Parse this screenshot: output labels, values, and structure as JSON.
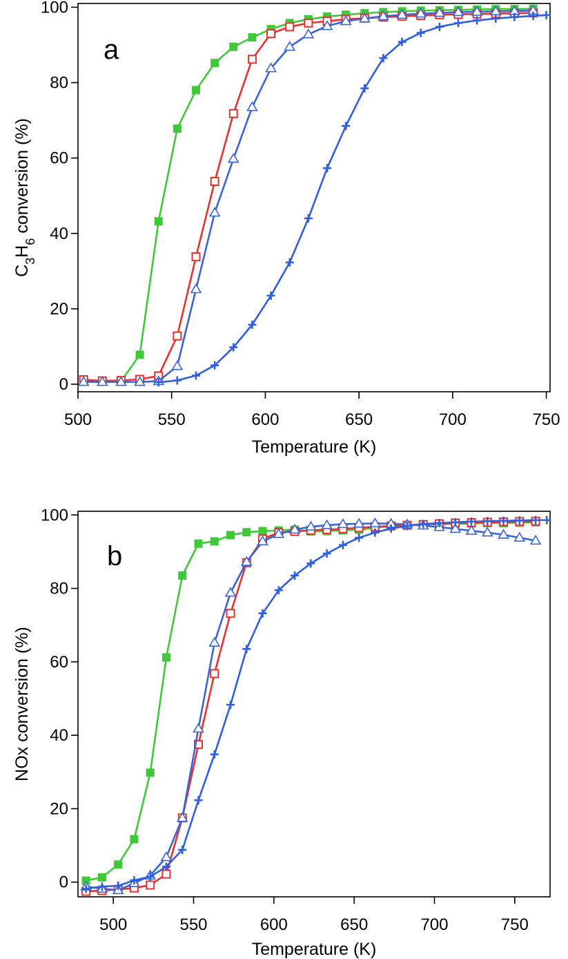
{
  "chart_data": [
    {
      "type": "line",
      "panel_label": "a",
      "xlabel": "Temperature (K)",
      "ylabel": {
        "main": "C",
        "sub1": "3",
        "mid": "H",
        "sub2": "6",
        "tail": " conversion (%)"
      },
      "xlim": [
        500,
        752
      ],
      "ylim": [
        -2,
        101
      ],
      "xticks": [
        500,
        550,
        600,
        650,
        700,
        750
      ],
      "yticks": [
        0,
        20,
        40,
        60,
        80,
        100
      ],
      "grid": false,
      "legend": "none",
      "series": [
        {
          "color": "#3ec83a",
          "marker": "filled-square",
          "x": [
            503,
            513,
            523,
            533,
            543,
            553,
            563,
            573,
            583,
            593,
            603,
            613,
            623,
            633,
            643,
            653,
            663,
            673,
            683,
            693,
            703,
            713,
            723,
            733,
            743
          ],
          "y": [
            0.8,
            0.8,
            0.8,
            7.8,
            43.2,
            67.8,
            78.0,
            85.2,
            89.5,
            92.0,
            94.2,
            95.8,
            96.8,
            97.5,
            98.0,
            98.4,
            98.7,
            98.9,
            99.1,
            99.2,
            99.3,
            99.4,
            99.5,
            99.5,
            99.6
          ]
        },
        {
          "color": "#e8312f",
          "marker": "open-square",
          "x": [
            503,
            513,
            523,
            533,
            543,
            553,
            563,
            573,
            583,
            593,
            603,
            613,
            623,
            633,
            643,
            653,
            663,
            673,
            683,
            693,
            703,
            713,
            723,
            733,
            743
          ],
          "y": [
            1.2,
            0.9,
            1.0,
            1.3,
            2.2,
            12.8,
            33.8,
            53.8,
            71.8,
            86.2,
            93.0,
            94.8,
            95.8,
            96.3,
            96.8,
            97.1,
            97.4,
            97.6,
            97.8,
            98.0,
            98.1,
            98.2,
            98.3,
            98.4,
            98.5
          ]
        },
        {
          "color": "#3b63d8",
          "marker": "open-triangle",
          "x": [
            503,
            513,
            523,
            533,
            543,
            553,
            563,
            573,
            583,
            593,
            603,
            613,
            623,
            633,
            643,
            653,
            663,
            673,
            683,
            693,
            703,
            713,
            723,
            733,
            743
          ],
          "y": [
            0.6,
            0.6,
            0.6,
            0.6,
            0.8,
            4.8,
            25.2,
            45.5,
            59.8,
            73.5,
            83.8,
            89.5,
            92.8,
            95.0,
            96.3,
            97.0,
            97.6,
            98.0,
            98.3,
            98.5,
            98.7,
            98.8,
            98.9,
            99.0,
            99.1
          ]
        },
        {
          "color": "#2f5fe0",
          "marker": "plus",
          "x": [
            543,
            553,
            563,
            573,
            583,
            593,
            603,
            613,
            623,
            633,
            643,
            653,
            663,
            673,
            683,
            693,
            703,
            713,
            723,
            733,
            743,
            750
          ],
          "y": [
            0.5,
            1.0,
            2.3,
            5.0,
            9.8,
            15.8,
            23.5,
            32.3,
            44.0,
            57.3,
            68.5,
            78.5,
            86.5,
            90.8,
            93.2,
            94.8,
            95.8,
            96.5,
            97.0,
            97.4,
            97.7,
            97.9
          ]
        }
      ]
    },
    {
      "type": "line",
      "panel_label": "b",
      "xlabel": "Temperature (K)",
      "ylabel": {
        "main": "NOx conversion (%)"
      },
      "xlim": [
        478,
        772
      ],
      "ylim": [
        -4,
        101
      ],
      "xticks": [
        500,
        550,
        600,
        650,
        700,
        750
      ],
      "yticks": [
        0,
        20,
        40,
        60,
        80,
        100
      ],
      "grid": false,
      "legend": "none",
      "series": [
        {
          "color": "#3ec83a",
          "marker": "filled-square",
          "x": [
            483,
            493,
            503,
            513,
            523,
            533,
            543,
            553,
            563,
            573,
            583,
            593,
            603,
            613,
            623,
            633,
            643,
            653,
            663,
            673,
            683,
            693,
            703,
            713,
            723,
            733,
            743,
            753,
            763
          ],
          "y": [
            0.4,
            1.3,
            4.8,
            11.7,
            29.8,
            61.2,
            83.5,
            92.2,
            92.8,
            94.5,
            95.3,
            95.6,
            95.8,
            96.0,
            95.5,
            95.6,
            95.8,
            96.0,
            96.5,
            97.0,
            97.2,
            97.4,
            97.5,
            97.6,
            97.7,
            97.8,
            97.8,
            97.9,
            98.0
          ]
        },
        {
          "color": "#e8312f",
          "marker": "open-square",
          "x": [
            483,
            493,
            503,
            513,
            523,
            533,
            543,
            553,
            563,
            573,
            583,
            593,
            603,
            613,
            623,
            633,
            643,
            653,
            663,
            673,
            683,
            693,
            703,
            713,
            723,
            733,
            743,
            753,
            763
          ],
          "y": [
            -2.5,
            -2.3,
            -2.0,
            -1.6,
            -0.8,
            2.2,
            17.5,
            37.5,
            56.8,
            73.2,
            87.0,
            93.5,
            95.2,
            95.5,
            95.8,
            96.0,
            96.2,
            96.5,
            96.8,
            97.0,
            97.2,
            97.4,
            97.6,
            97.8,
            97.9,
            98.0,
            98.1,
            98.2,
            98.3
          ]
        },
        {
          "color": "#3b63d8",
          "marker": "open-triangle",
          "x": [
            483,
            493,
            503,
            513,
            523,
            533,
            543,
            553,
            563,
            573,
            583,
            593,
            603,
            613,
            623,
            633,
            643,
            653,
            663,
            673,
            683,
            693,
            703,
            713,
            723,
            733,
            743,
            753,
            763
          ],
          "y": [
            -1.2,
            -1.8,
            -2.2,
            -0.3,
            1.8,
            6.8,
            17.5,
            41.8,
            65.2,
            78.8,
            87.2,
            92.8,
            94.8,
            96.0,
            96.8,
            97.2,
            97.5,
            97.6,
            97.7,
            97.6,
            97.4,
            97.1,
            96.7,
            96.2,
            95.7,
            95.2,
            94.6,
            93.8,
            93.0
          ]
        },
        {
          "color": "#2f5fe0",
          "marker": "plus",
          "x": [
            483,
            493,
            503,
            513,
            523,
            533,
            543,
            553,
            563,
            573,
            583,
            593,
            603,
            613,
            623,
            633,
            643,
            653,
            663,
            673,
            683,
            693,
            703,
            713,
            723,
            733,
            743,
            753,
            763,
            770
          ],
          "y": [
            -1.8,
            -1.2,
            -1.0,
            0.5,
            1.5,
            4.2,
            8.8,
            22.3,
            34.8,
            48.3,
            63.5,
            73.2,
            79.5,
            83.5,
            86.8,
            89.5,
            91.8,
            93.8,
            95.2,
            96.3,
            97.0,
            97.5,
            97.8,
            98.0,
            98.2,
            98.3,
            98.4,
            98.5,
            98.6,
            98.6
          ]
        }
      ]
    }
  ]
}
